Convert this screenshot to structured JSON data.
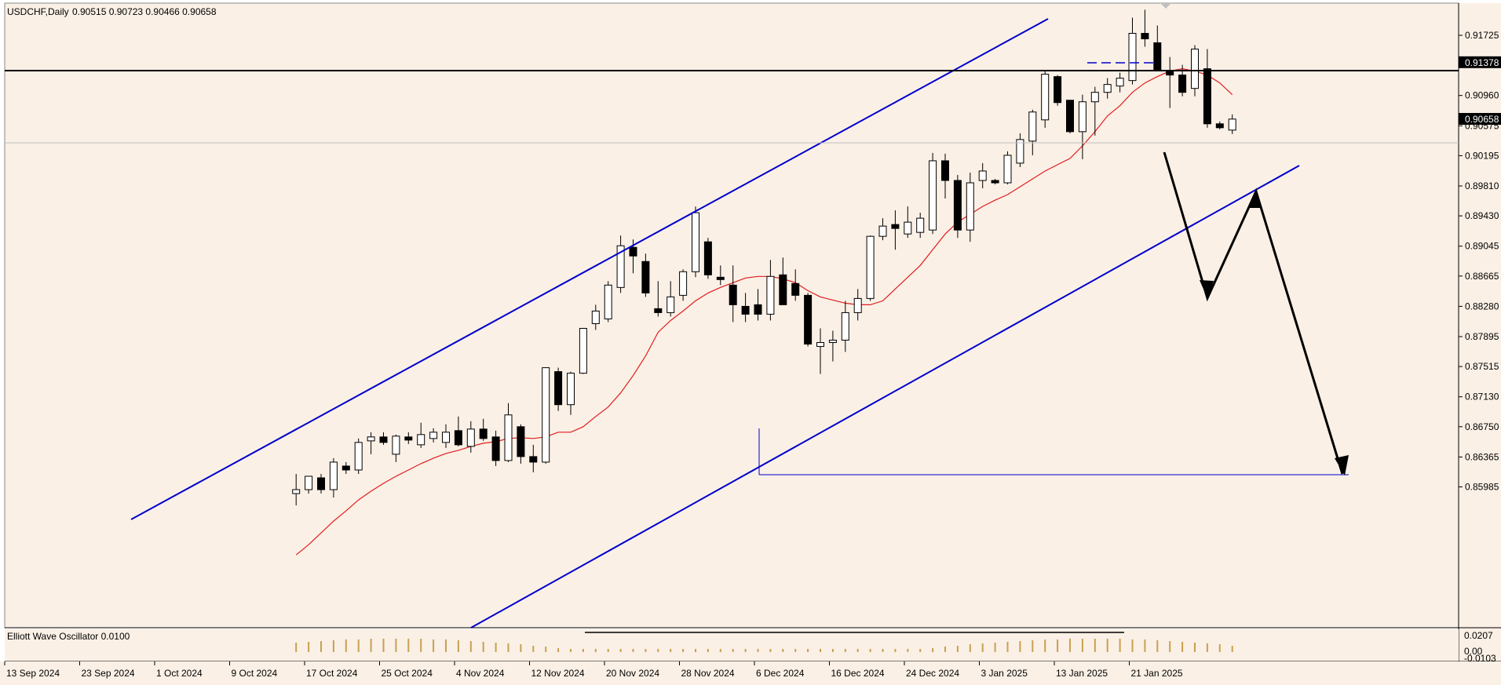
{
  "chart_data": {
    "type": "candlestick",
    "symbol_timeframe": "USDCHF,Daily",
    "ohlc_header": "0.90515 0.90723 0.90466 0.90658",
    "price_axis_ticks": [
      "0.91725",
      "0.90960",
      "0.90575",
      "0.90195",
      "0.89810",
      "0.89430",
      "0.89045",
      "0.88665",
      "0.88280",
      "0.87895",
      "0.87515",
      "0.87130",
      "0.86750",
      "0.86365",
      "0.85985"
    ],
    "price_markers": [
      {
        "label": "0.91378",
        "value": 0.91378,
        "style": "hline-black"
      },
      {
        "label": "0.90658",
        "value": 0.90658,
        "style": "current-price"
      }
    ],
    "date_axis_labels": [
      "13 Sep 2024",
      "23 Sep 2024",
      "1 Oct 2024",
      "9 Oct 2024",
      "17 Oct 2024",
      "25 Oct 2024",
      "4 Nov 2024",
      "12 Nov 2024",
      "20 Nov 2024",
      "28 Nov 2024",
      "6 Dec 2024",
      "16 Dec 2024",
      "24 Dec 2024",
      "3 Jan 2025",
      "13 Jan 2025",
      "21 Jan 2025"
    ],
    "ylim": [
      0.8583,
      0.921
    ],
    "candles": [
      {
        "o": 0.859,
        "h": 0.8615,
        "l": 0.8575,
        "c": 0.8595
      },
      {
        "o": 0.8595,
        "h": 0.8612,
        "l": 0.859,
        "c": 0.8612
      },
      {
        "o": 0.861,
        "h": 0.8615,
        "l": 0.859,
        "c": 0.8595
      },
      {
        "o": 0.8595,
        "h": 0.8635,
        "l": 0.8585,
        "c": 0.863
      },
      {
        "o": 0.8625,
        "h": 0.863,
        "l": 0.8615,
        "c": 0.862
      },
      {
        "o": 0.862,
        "h": 0.866,
        "l": 0.8615,
        "c": 0.8655
      },
      {
        "o": 0.8657,
        "h": 0.8668,
        "l": 0.864,
        "c": 0.8662
      },
      {
        "o": 0.8662,
        "h": 0.8668,
        "l": 0.8652,
        "c": 0.8655
      },
      {
        "o": 0.864,
        "h": 0.8665,
        "l": 0.863,
        "c": 0.8663
      },
      {
        "o": 0.8662,
        "h": 0.8668,
        "l": 0.8653,
        "c": 0.8658
      },
      {
        "o": 0.8652,
        "h": 0.868,
        "l": 0.8648,
        "c": 0.8665
      },
      {
        "o": 0.866,
        "h": 0.8673,
        "l": 0.8655,
        "c": 0.8668
      },
      {
        "o": 0.8655,
        "h": 0.8678,
        "l": 0.8648,
        "c": 0.8668
      },
      {
        "o": 0.867,
        "h": 0.8688,
        "l": 0.865,
        "c": 0.8652
      },
      {
        "o": 0.865,
        "h": 0.8682,
        "l": 0.8642,
        "c": 0.8672
      },
      {
        "o": 0.8672,
        "h": 0.8685,
        "l": 0.8657,
        "c": 0.866
      },
      {
        "o": 0.8662,
        "h": 0.867,
        "l": 0.8625,
        "c": 0.8632
      },
      {
        "o": 0.8632,
        "h": 0.8705,
        "l": 0.863,
        "c": 0.869
      },
      {
        "o": 0.8675,
        "h": 0.8678,
        "l": 0.8628,
        "c": 0.8637
      },
      {
        "o": 0.8637,
        "h": 0.8652,
        "l": 0.8617,
        "c": 0.863
      },
      {
        "o": 0.863,
        "h": 0.875,
        "l": 0.8628,
        "c": 0.875
      },
      {
        "o": 0.8745,
        "h": 0.875,
        "l": 0.8695,
        "c": 0.8703
      },
      {
        "o": 0.8703,
        "h": 0.8745,
        "l": 0.869,
        "c": 0.8743
      },
      {
        "o": 0.8743,
        "h": 0.88,
        "l": 0.8742,
        "c": 0.88
      },
      {
        "o": 0.8806,
        "h": 0.883,
        "l": 0.8798,
        "c": 0.8822
      },
      {
        "o": 0.8812,
        "h": 0.886,
        "l": 0.8808,
        "c": 0.8855
      },
      {
        "o": 0.8852,
        "h": 0.8918,
        "l": 0.8845,
        "c": 0.8905
      },
      {
        "o": 0.8903,
        "h": 0.8913,
        "l": 0.887,
        "c": 0.8892
      },
      {
        "o": 0.8885,
        "h": 0.8895,
        "l": 0.884,
        "c": 0.8845
      },
      {
        "o": 0.8825,
        "h": 0.886,
        "l": 0.8815,
        "c": 0.882
      },
      {
        "o": 0.882,
        "h": 0.886,
        "l": 0.8815,
        "c": 0.884
      },
      {
        "o": 0.8842,
        "h": 0.8875,
        "l": 0.8835,
        "c": 0.8872
      },
      {
        "o": 0.8872,
        "h": 0.8955,
        "l": 0.8865,
        "c": 0.8947
      },
      {
        "o": 0.891,
        "h": 0.8915,
        "l": 0.8863,
        "c": 0.8868
      },
      {
        "o": 0.8865,
        "h": 0.888,
        "l": 0.8855,
        "c": 0.8862
      },
      {
        "o": 0.8855,
        "h": 0.888,
        "l": 0.8808,
        "c": 0.883
      },
      {
        "o": 0.8828,
        "h": 0.8845,
        "l": 0.8808,
        "c": 0.8818
      },
      {
        "o": 0.883,
        "h": 0.885,
        "l": 0.881,
        "c": 0.8818
      },
      {
        "o": 0.8818,
        "h": 0.8887,
        "l": 0.881,
        "c": 0.8866
      },
      {
        "o": 0.8868,
        "h": 0.889,
        "l": 0.883,
        "c": 0.883
      },
      {
        "o": 0.8857,
        "h": 0.8875,
        "l": 0.8835,
        "c": 0.8842
      },
      {
        "o": 0.8842,
        "h": 0.8845,
        "l": 0.8777,
        "c": 0.878
      },
      {
        "o": 0.8777,
        "h": 0.88,
        "l": 0.8742,
        "c": 0.8782
      },
      {
        "o": 0.8782,
        "h": 0.8797,
        "l": 0.8758,
        "c": 0.8785
      },
      {
        "o": 0.8785,
        "h": 0.8835,
        "l": 0.877,
        "c": 0.882
      },
      {
        "o": 0.882,
        "h": 0.885,
        "l": 0.881,
        "c": 0.8838
      },
      {
        "o": 0.8838,
        "h": 0.8918,
        "l": 0.8835,
        "c": 0.8917
      },
      {
        "o": 0.8917,
        "h": 0.894,
        "l": 0.8912,
        "c": 0.893
      },
      {
        "o": 0.8932,
        "h": 0.895,
        "l": 0.89,
        "c": 0.8927
      },
      {
        "o": 0.892,
        "h": 0.8955,
        "l": 0.8915,
        "c": 0.8935
      },
      {
        "o": 0.8922,
        "h": 0.8947,
        "l": 0.8915,
        "c": 0.894
      },
      {
        "o": 0.8925,
        "h": 0.9023,
        "l": 0.892,
        "c": 0.9013
      },
      {
        "o": 0.9013,
        "h": 0.9022,
        "l": 0.8965,
        "c": 0.8988
      },
      {
        "o": 0.8988,
        "h": 0.8995,
        "l": 0.8915,
        "c": 0.8925
      },
      {
        "o": 0.8925,
        "h": 0.8998,
        "l": 0.891,
        "c": 0.8985
      },
      {
        "o": 0.8988,
        "h": 0.901,
        "l": 0.8978,
        "c": 0.9
      },
      {
        "o": 0.8988,
        "h": 0.899,
        "l": 0.8983,
        "c": 0.8985
      },
      {
        "o": 0.8985,
        "h": 0.9025,
        "l": 0.8983,
        "c": 0.902
      },
      {
        "o": 0.901,
        "h": 0.9048,
        "l": 0.9005,
        "c": 0.904
      },
      {
        "o": 0.9038,
        "h": 0.9078,
        "l": 0.902,
        "c": 0.9075
      },
      {
        "o": 0.9065,
        "h": 0.9127,
        "l": 0.9055,
        "c": 0.9123
      },
      {
        "o": 0.912,
        "h": 0.9122,
        "l": 0.9083,
        "c": 0.9087
      },
      {
        "o": 0.909,
        "h": 0.909,
        "l": 0.9048,
        "c": 0.905
      },
      {
        "o": 0.905,
        "h": 0.9097,
        "l": 0.9015,
        "c": 0.9088
      },
      {
        "o": 0.9088,
        "h": 0.9107,
        "l": 0.9045,
        "c": 0.91
      },
      {
        "o": 0.91,
        "h": 0.9118,
        "l": 0.9092,
        "c": 0.911
      },
      {
        "o": 0.9108,
        "h": 0.9125,
        "l": 0.91,
        "c": 0.9118
      },
      {
        "o": 0.9115,
        "h": 0.9195,
        "l": 0.911,
        "c": 0.9175
      },
      {
        "o": 0.9175,
        "h": 0.9205,
        "l": 0.9158,
        "c": 0.9168
      },
      {
        "o": 0.9163,
        "h": 0.9185,
        "l": 0.913,
        "c": 0.9128
      },
      {
        "o": 0.9128,
        "h": 0.9145,
        "l": 0.908,
        "c": 0.9122
      },
      {
        "o": 0.9122,
        "h": 0.9135,
        "l": 0.9095,
        "c": 0.91
      },
      {
        "o": 0.9105,
        "h": 0.916,
        "l": 0.9095,
        "c": 0.9155
      },
      {
        "o": 0.913,
        "h": 0.9155,
        "l": 0.9055,
        "c": 0.906
      },
      {
        "o": 0.906,
        "h": 0.9063,
        "l": 0.9053,
        "c": 0.9055
      },
      {
        "o": 0.9052,
        "h": 0.9072,
        "l": 0.9047,
        "c": 0.9066
      }
    ],
    "candle_first_x": 8,
    "ma_line": {
      "color": "#e11d1d",
      "period_label": "",
      "values": [
        0.8512,
        0.8525,
        0.854,
        0.8555,
        0.8568,
        0.8582,
        0.8593,
        0.8603,
        0.8612,
        0.862,
        0.8628,
        0.8635,
        0.8641,
        0.8645,
        0.865,
        0.8654,
        0.8656,
        0.866,
        0.8661,
        0.866,
        0.8662,
        0.8668,
        0.8668,
        0.8675,
        0.8688,
        0.87,
        0.8718,
        0.874,
        0.8765,
        0.8795,
        0.881,
        0.8822,
        0.8835,
        0.8845,
        0.8852,
        0.8858,
        0.8864,
        0.8866,
        0.8866,
        0.8863,
        0.8858,
        0.8848,
        0.884,
        0.8836,
        0.8832,
        0.883,
        0.883,
        0.8835,
        0.885,
        0.8865,
        0.888,
        0.89,
        0.892,
        0.8935,
        0.8945,
        0.8955,
        0.8963,
        0.897,
        0.898,
        0.899,
        0.9,
        0.9008,
        0.9016,
        0.9032,
        0.905,
        0.907,
        0.9083,
        0.91,
        0.9112,
        0.912,
        0.9127,
        0.913,
        0.9127,
        0.9122,
        0.9112,
        0.9097
      ]
    }
  },
  "oscillator": {
    "label": "Elliott Wave Oscillator 0.0100",
    "ticks": [
      "0.0207",
      "0.00",
      "-0.0103"
    ]
  },
  "colors": {
    "plot_bg": "#faf0e6",
    "channel": "#0000cc",
    "ma": "#e11d1d",
    "candle_up": "#ffffff",
    "candle_down": "#000000",
    "bars": "#c8a050"
  }
}
